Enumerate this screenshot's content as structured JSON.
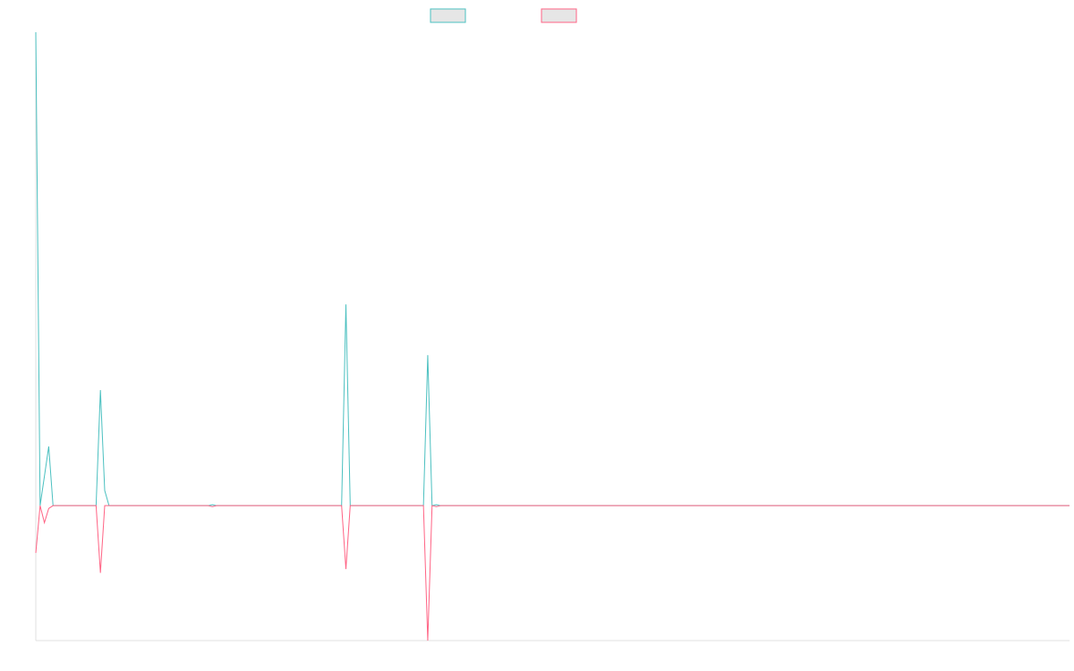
{
  "chart_data": {
    "type": "line",
    "x": [
      0,
      1,
      2,
      3,
      4,
      14,
      15,
      16,
      17,
      40,
      41,
      42,
      71,
      72,
      73,
      90,
      91,
      92,
      93,
      94,
      240
    ],
    "series": [
      {
        "color": "#4bc0c0",
        "values": [
          100,
          0,
          6.2,
          12.5,
          0,
          0,
          24.4,
          3.2,
          0,
          0,
          0.2,
          0,
          0,
          42.5,
          0,
          0,
          31.8,
          0,
          0.2,
          0,
          0
        ]
      },
      {
        "color": "#ff6384",
        "values": [
          -10,
          0,
          -3.6,
          -0.6,
          0,
          0,
          -14.2,
          0,
          0,
          0,
          -0.2,
          0,
          0,
          -13.4,
          0,
          0,
          -28.5,
          0,
          -0.2,
          0,
          0
        ]
      }
    ],
    "legend_fill": "#e6e6e6",
    "xlim": [
      0,
      240
    ],
    "ylim": [
      -28.5,
      100
    ]
  }
}
